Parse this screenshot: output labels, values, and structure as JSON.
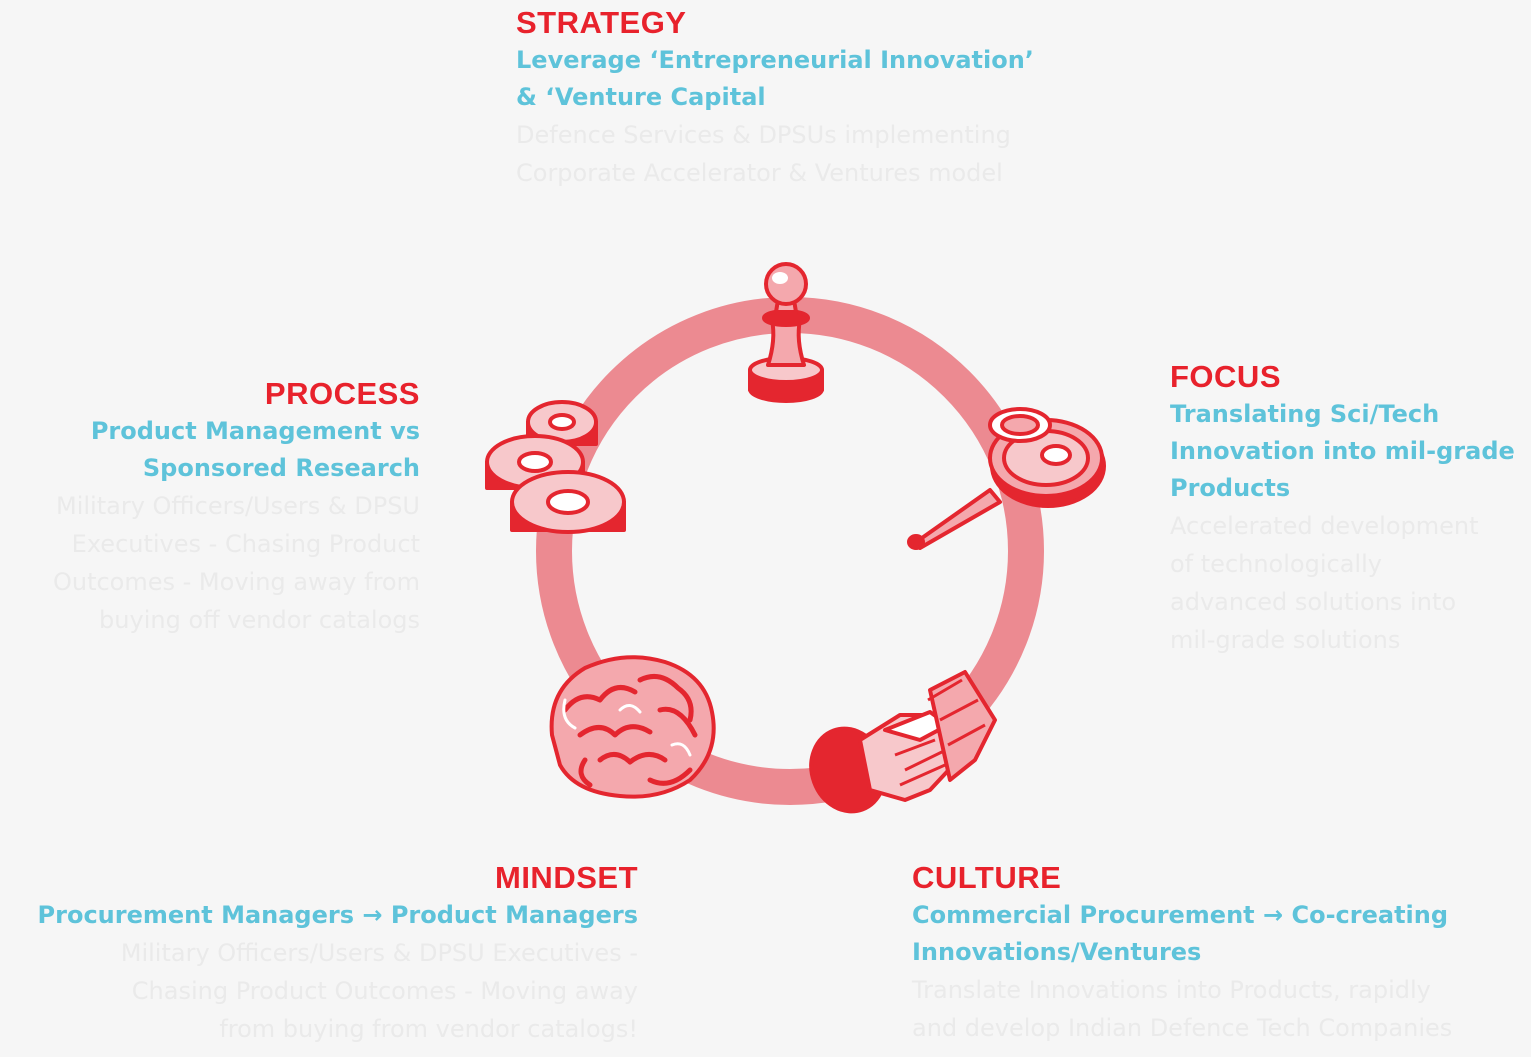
{
  "colors": {
    "background": "#f6f6f6",
    "title": "#e8222c",
    "subtitle": "#5ec3da",
    "body": "#eaeaea",
    "ring": "#ec8a91",
    "icon_red": "#e4262f",
    "icon_pink": "#f4a8ad"
  },
  "sections": {
    "strategy": {
      "title": "STRATEGY",
      "subtitle_lines": [
        "Leverage ‘Entrepreneurial Innovation’",
        "& ‘Venture Capital"
      ],
      "body_lines": [
        "Defence Services & DPSUs implementing",
        "Corporate Accelerator & Ventures model"
      ],
      "icon": "chess-pawn-icon"
    },
    "focus": {
      "title": "FOCUS",
      "subtitle_lines": [
        "Translating Sci/Tech",
        "Innovation into mil-grade",
        "Products"
      ],
      "body_lines": [
        "Accelerated development",
        "of technologically",
        "advanced solutions into",
        "mil-grade solutions"
      ],
      "icon": "magnifying-glass-icon"
    },
    "culture": {
      "title": "CULTURE",
      "subtitle_lines": [
        "Commercial Procurement → Co-creating",
        "Innovations/Ventures"
      ],
      "body_lines": [
        "Translate Innovations into Products, rapidly",
        "and develop Indian Defence Tech Companies"
      ],
      "icon": "handshake-icon"
    },
    "mindset": {
      "title": "MINDSET",
      "subtitle_lines": [
        "Procurement Managers → Product Managers"
      ],
      "body_lines": [
        "Military Officers/Users & DPSU Executives -",
        "Chasing Product Outcomes - Moving away",
        "from buying from vendor catalogs!"
      ],
      "icon": "brain-icon"
    },
    "process": {
      "title": "PROCESS",
      "subtitle_lines": [
        "Product Management vs",
        "Sponsored Research"
      ],
      "body_lines": [
        "Military Officers/Users & DPSU",
        "Executives - Chasing Product",
        "Outcomes - Moving away from",
        "buying off vendor catalogs"
      ],
      "icon": "gears-icon"
    }
  }
}
